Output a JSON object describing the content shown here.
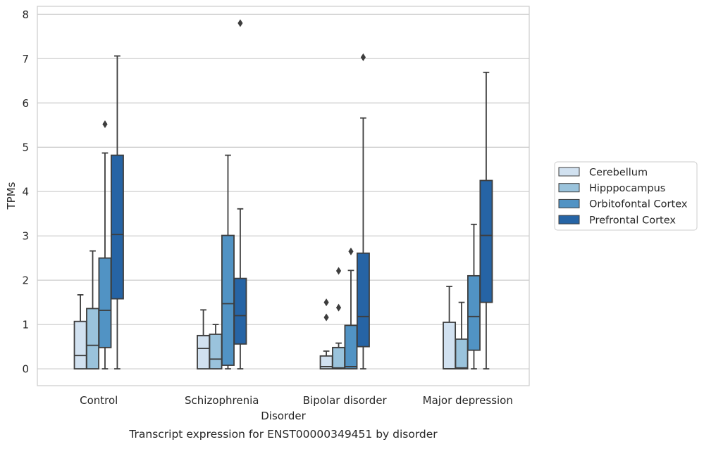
{
  "chart_data": {
    "type": "box",
    "title": "",
    "caption": "Transcript expression for ENST00000349451 by disorder",
    "xlabel": "Disorder",
    "ylabel": "TPMs",
    "ylim": [
      -0.38,
      8.18
    ],
    "yticks": [
      0,
      1,
      2,
      3,
      4,
      5,
      6,
      7,
      8
    ],
    "grid": "horizontal",
    "legend_position": "right",
    "categories": [
      "Control",
      "Schizophrenia",
      "Bipolar disorder",
      "Major depression"
    ],
    "series": [
      {
        "name": "Cerebellum",
        "color": "#d1e1f0",
        "boxes": [
          {
            "whislo": 0,
            "q1": 0,
            "med": 0.3,
            "q3": 1.07,
            "whishi": 1.67,
            "fliers": []
          },
          {
            "whislo": 0,
            "q1": 0,
            "med": 0.46,
            "q3": 0.75,
            "whishi": 1.33,
            "fliers": []
          },
          {
            "whislo": 0,
            "q1": 0,
            "med": 0.05,
            "q3": 0.29,
            "whishi": 0.4,
            "fliers": [
              1.16,
              1.5
            ]
          },
          {
            "whislo": 0,
            "q1": 0,
            "med": 0,
            "q3": 1.05,
            "whishi": 1.86,
            "fliers": []
          }
        ]
      },
      {
        "name": "Hipppocampus",
        "color": "#9ac3dc",
        "boxes": [
          {
            "whislo": 0,
            "q1": 0,
            "med": 0.53,
            "q3": 1.36,
            "whishi": 2.66,
            "fliers": []
          },
          {
            "whislo": 0,
            "q1": 0,
            "med": 0.22,
            "q3": 0.78,
            "whishi": 1.0,
            "fliers": []
          },
          {
            "whislo": 0,
            "q1": 0,
            "med": 0.02,
            "q3": 0.48,
            "whishi": 0.58,
            "fliers": [
              1.38,
              2.21
            ]
          },
          {
            "whislo": 0,
            "q1": 0,
            "med": 0.02,
            "q3": 0.67,
            "whishi": 1.5,
            "fliers": []
          }
        ]
      },
      {
        "name": "Orbitofontal Cortex",
        "color": "#5193c4",
        "boxes": [
          {
            "whislo": 0,
            "q1": 0.48,
            "med": 1.32,
            "q3": 2.5,
            "whishi": 4.87,
            "fliers": [
              5.52
            ]
          },
          {
            "whislo": 0,
            "q1": 0.08,
            "med": 1.47,
            "q3": 3.01,
            "whishi": 4.82,
            "fliers": []
          },
          {
            "whislo": 0,
            "q1": 0,
            "med": 0.05,
            "q3": 0.98,
            "whishi": 2.22,
            "fliers": [
              2.65
            ]
          },
          {
            "whislo": 0,
            "q1": 0.42,
            "med": 1.18,
            "q3": 2.1,
            "whishi": 3.26,
            "fliers": []
          }
        ]
      },
      {
        "name": "Prefrontal Cortex",
        "color": "#2664a5",
        "boxes": [
          {
            "whislo": 0,
            "q1": 1.58,
            "med": 3.03,
            "q3": 4.82,
            "whishi": 7.06,
            "fliers": []
          },
          {
            "whislo": 0,
            "q1": 0.56,
            "med": 1.2,
            "q3": 2.04,
            "whishi": 3.61,
            "fliers": [
              7.8
            ]
          },
          {
            "whislo": 0,
            "q1": 0.5,
            "med": 1.18,
            "q3": 2.61,
            "whishi": 5.66,
            "fliers": [
              7.03
            ]
          },
          {
            "whislo": 0,
            "q1": 1.5,
            "med": 3.01,
            "q3": 4.25,
            "whishi": 6.69,
            "fliers": []
          }
        ]
      }
    ]
  }
}
